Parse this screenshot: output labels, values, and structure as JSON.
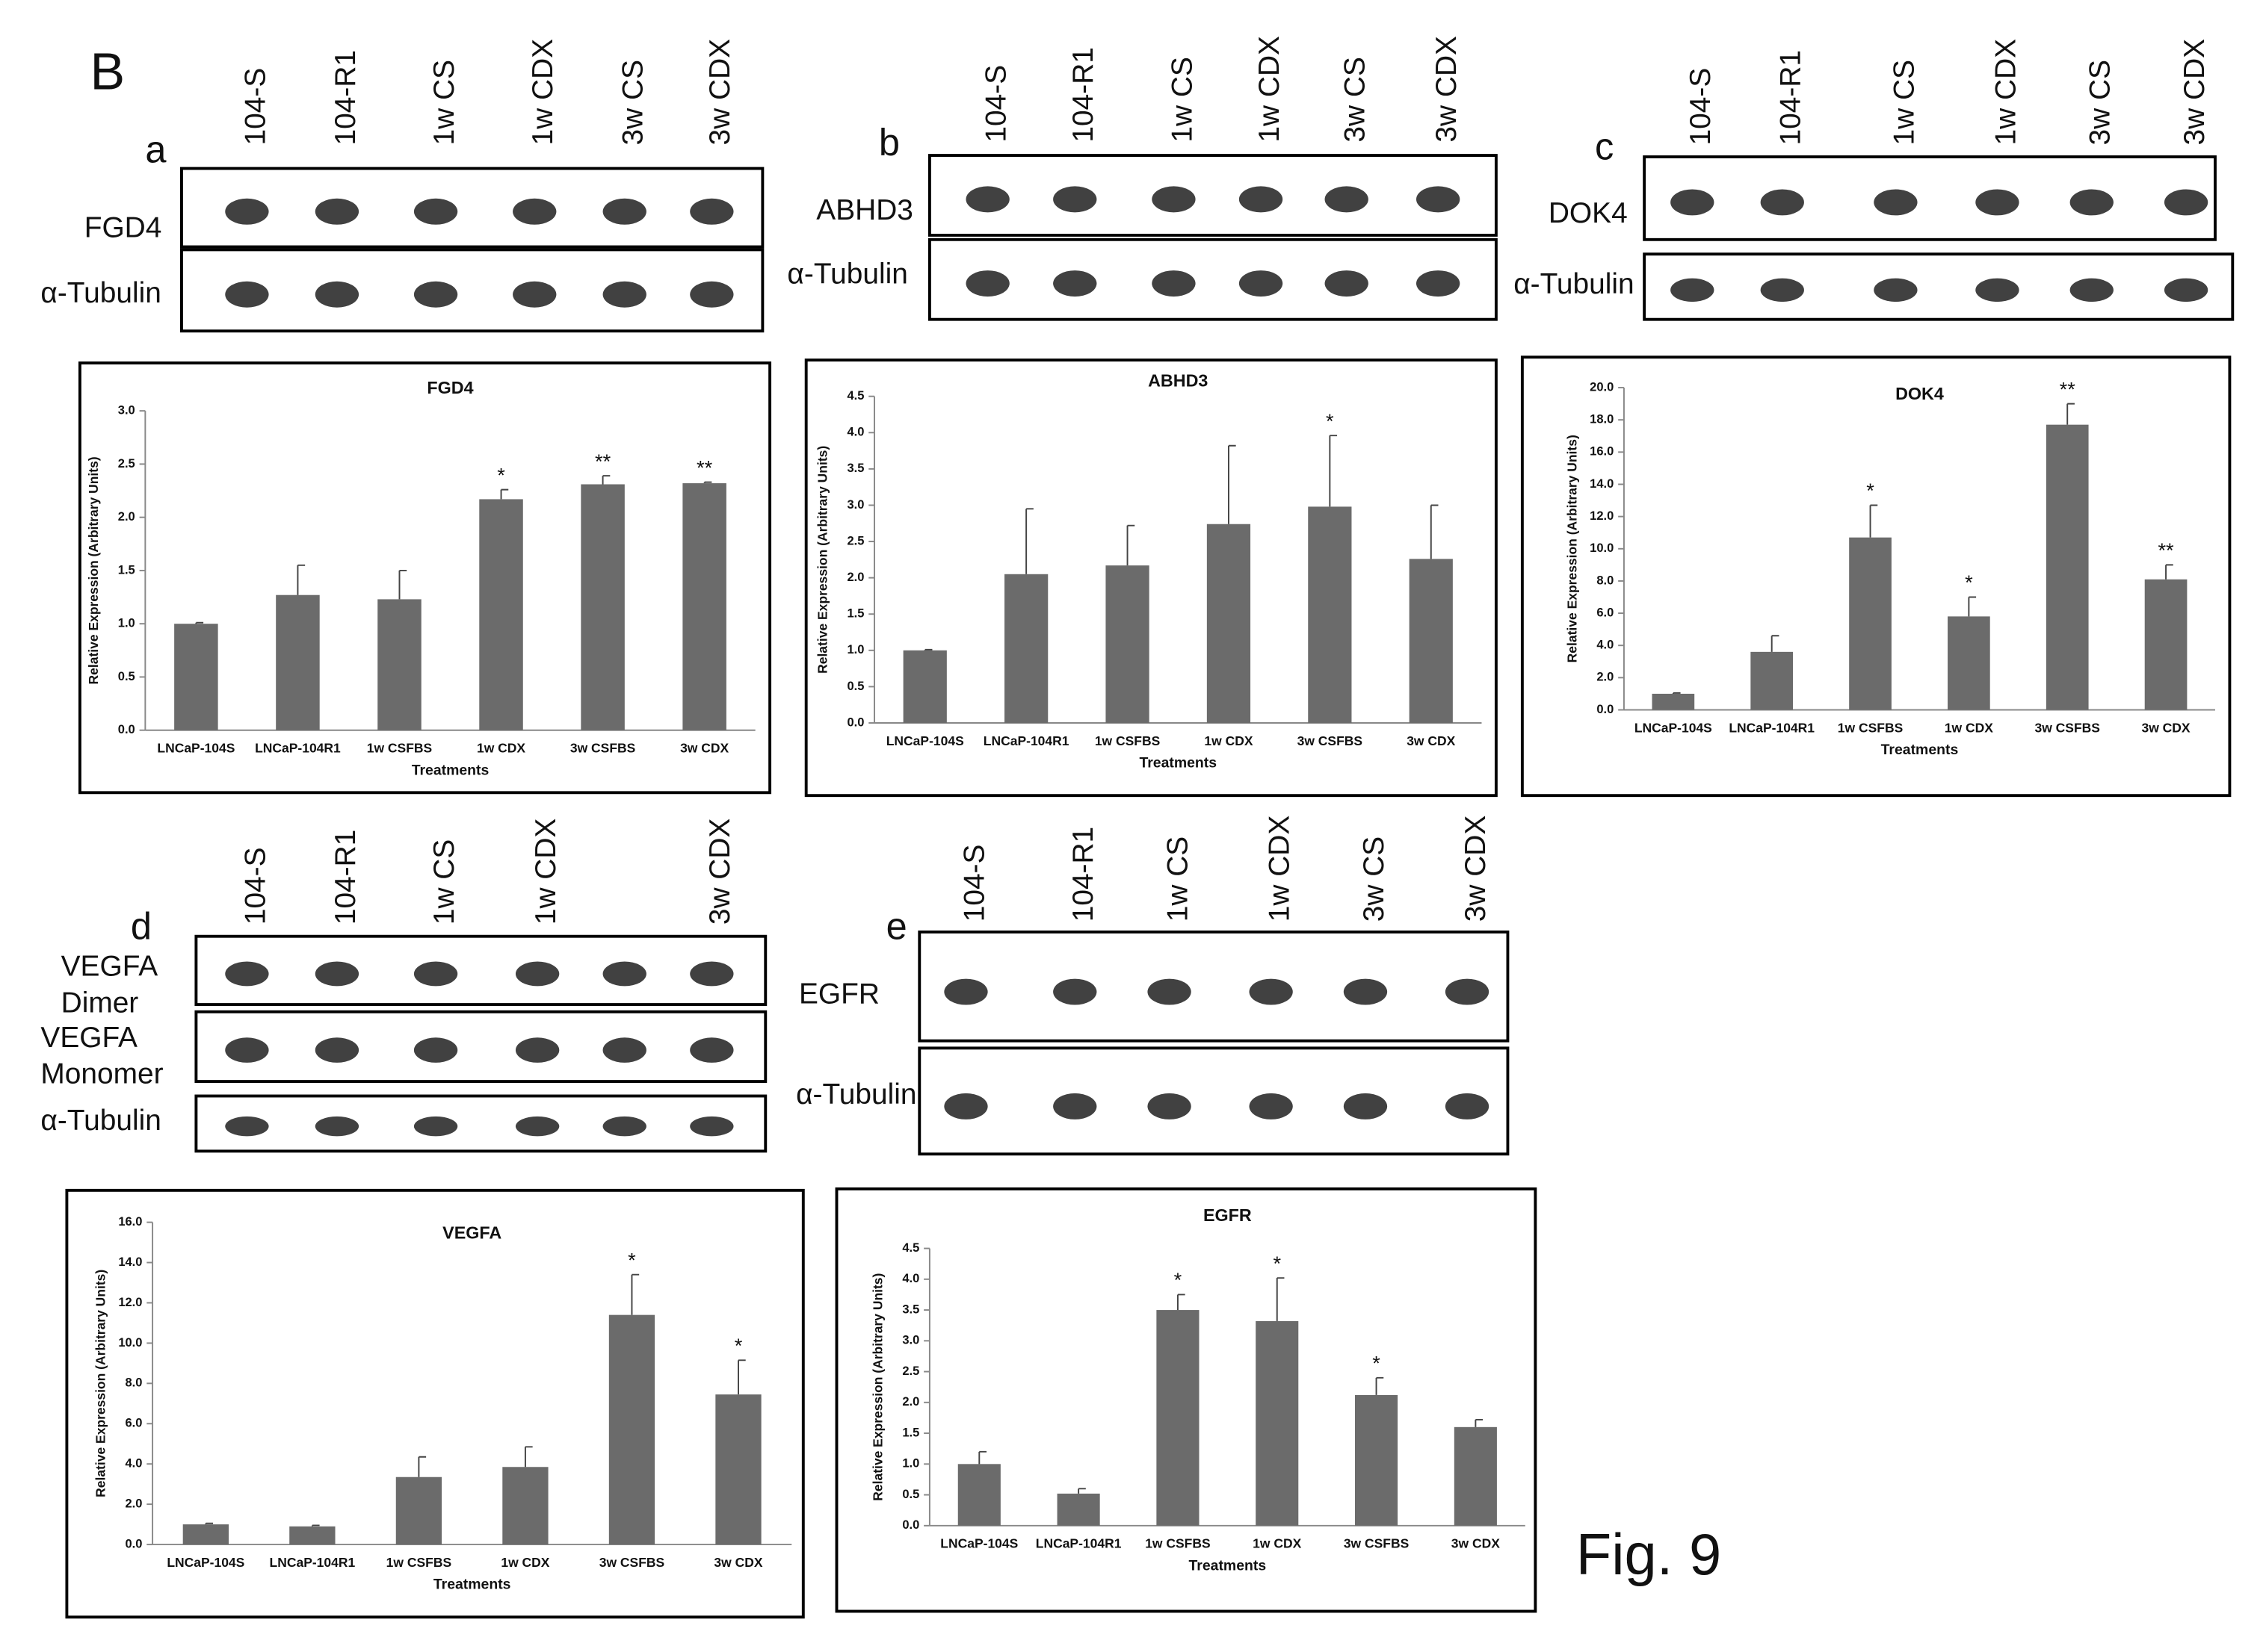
{
  "figure_label": "B",
  "caption": "Fig. 9",
  "blots": [
    {
      "panel": "a",
      "lanes": [
        "104-S",
        "104-R1",
        "1w CS",
        "1w CDX",
        "3w CS",
        "3w CDX"
      ],
      "rows": [
        [
          "FGD4"
        ],
        [
          "α-Tubulin"
        ]
      ]
    },
    {
      "panel": "b",
      "lanes": [
        "104-S",
        "104-R1",
        "1w CS",
        "1w CDX",
        "3w CS",
        "3w CDX"
      ],
      "rows": [
        [
          "ABHD3"
        ],
        [
          "α-Tubulin"
        ]
      ]
    },
    {
      "panel": "c",
      "lanes": [
        "104-S",
        "104-R1",
        "1w CS",
        "1w CDX",
        "3w CS",
        "3w CDX"
      ],
      "rows": [
        [
          "DOK4"
        ],
        [
          "α-Tubulin"
        ]
      ]
    },
    {
      "panel": "d",
      "lanes": [
        "104-S",
        "104-R1",
        "1w CS",
        "1w CDX",
        null,
        "3w CDX"
      ],
      "rows": [
        [
          "VEGFA",
          "Dimer"
        ],
        [
          "VEGFA",
          "Monomer"
        ],
        [
          "α-Tubulin"
        ]
      ]
    },
    {
      "panel": "e",
      "lanes": [
        "104-S",
        "104-R1",
        "1w CS",
        "1w CDX",
        "3w CS",
        "3w CDX"
      ],
      "rows": [
        [
          "EGFR"
        ],
        [
          "α-Tubulin"
        ]
      ]
    }
  ],
  "chart_data": [
    {
      "type": "bar",
      "title": "FGD4",
      "xlabel": "Treatments",
      "ylabel": "Relative Expression (Arbitrary Units)",
      "color": "#6b6b6b",
      "categories": [
        "LNCaP-104S",
        "LNCaP-104R1",
        "1w CSFBS",
        "1w CDX",
        "3w CSFBS",
        "3w CDX"
      ],
      "values": [
        1.0,
        1.27,
        1.23,
        2.17,
        2.31,
        2.32
      ],
      "errors": [
        0.01,
        0.28,
        0.27,
        0.09,
        0.08,
        0.01
      ],
      "annotations": [
        null,
        null,
        null,
        "*",
        "**",
        "**"
      ],
      "ylim": [
        0,
        3
      ],
      "yticks": [
        {
          "value": 0,
          "label": "0.0"
        },
        0.5,
        {
          "value": 1,
          "label": "1.0"
        },
        1.5,
        {
          "value": 2,
          "label": "2.0"
        },
        2.5,
        {
          "value": 3,
          "label": "3.0"
        }
      ]
    },
    {
      "type": "bar",
      "title": "ABHD3",
      "xlabel": "Treatments",
      "ylabel": "Relative Expression (Arbitrary Units)",
      "color": "#6b6b6b",
      "categories": [
        "LNCaP-104S",
        "LNCaP-104R1",
        "1w CSFBS",
        "1w CDX",
        "3w CSFBS",
        "3w CDX"
      ],
      "values": [
        1.0,
        2.05,
        2.17,
        2.74,
        2.98,
        2.26
      ],
      "errors": [
        0.01,
        0.9,
        0.55,
        1.08,
        0.98,
        0.74
      ],
      "annotations": [
        null,
        null,
        null,
        null,
        "*",
        null
      ],
      "ylim": [
        0,
        4.5
      ],
      "yticks": [
        {
          "value": 0,
          "label": "0.0"
        },
        0.5,
        {
          "value": 1,
          "label": "1.0"
        },
        1.5,
        {
          "value": 2,
          "label": "2.0"
        },
        2.5,
        {
          "value": 3,
          "label": "3.0"
        },
        3.5,
        {
          "value": 4,
          "label": "4.0"
        },
        4.5
      ]
    },
    {
      "type": "bar",
      "title": "DOK4",
      "xlabel": "Treatments",
      "ylabel": "Relative Expression (Arbitrary Units)",
      "color": "#6b6b6b",
      "categories": [
        "LNCaP-104S",
        "LNCaP-104R1",
        "1w CSFBS",
        "1w CDX",
        "3w CSFBS",
        "3w CDX"
      ],
      "values": [
        1.0,
        3.6,
        10.7,
        5.8,
        17.7,
        8.1
      ],
      "errors": [
        0.05,
        1.0,
        2.0,
        1.2,
        1.3,
        0.9
      ],
      "annotations": [
        null,
        null,
        "*",
        "*",
        "**",
        "**"
      ],
      "ylim": [
        0,
        20
      ],
      "yticks": [
        {
          "value": 0,
          "label": "0.0"
        },
        {
          "value": 2,
          "label": "2.0"
        },
        {
          "value": 4,
          "label": "4.0"
        },
        {
          "value": 6,
          "label": "6.0"
        },
        {
          "value": 8,
          "label": "8.0"
        },
        {
          "value": 10,
          "label": "10.0"
        },
        {
          "value": 12,
          "label": "12.0"
        },
        {
          "value": 14,
          "label": "14.0"
        },
        {
          "value": 16,
          "label": "16.0"
        },
        {
          "value": 18,
          "label": "18.0"
        },
        {
          "value": 20,
          "label": "20.0"
        }
      ]
    },
    {
      "type": "bar",
      "title": "VEGFA",
      "xlabel": "Treatments",
      "ylabel": "Relative Expression (Arbitrary Units)",
      "color": "#6b6b6b",
      "categories": [
        "LNCaP-104S",
        "LNCaP-104R1",
        "1w CSFBS",
        "1w CDX",
        "3w CSFBS",
        "3w CDX"
      ],
      "values": [
        1.0,
        0.9,
        3.35,
        3.85,
        11.4,
        7.45
      ],
      "errors": [
        0.05,
        0.05,
        1.0,
        1.0,
        2.0,
        1.7
      ],
      "annotations": [
        null,
        null,
        null,
        null,
        "*",
        "*"
      ],
      "ylim": [
        0,
        16
      ],
      "yticks": [
        {
          "value": 0,
          "label": "0.0"
        },
        {
          "value": 2,
          "label": "2.0"
        },
        {
          "value": 4,
          "label": "4.0"
        },
        {
          "value": 6,
          "label": "6.0"
        },
        {
          "value": 8,
          "label": "8.0"
        },
        {
          "value": 10,
          "label": "10.0"
        },
        {
          "value": 12,
          "label": "12.0"
        },
        {
          "value": 14,
          "label": "14.0"
        },
        {
          "value": 16,
          "label": "16.0"
        }
      ]
    },
    {
      "type": "bar",
      "title": "EGFR",
      "xlabel": "Treatments",
      "ylabel": "Relative Expression (Arbitrary Units)",
      "color": "#6b6b6b",
      "categories": [
        "LNCaP-104S",
        "LNCaP-104R1",
        "1w CSFBS",
        "1w CDX",
        "3w CSFBS",
        "3w CDX"
      ],
      "values": [
        1.0,
        0.52,
        3.5,
        3.32,
        2.12,
        1.6
      ],
      "errors": [
        0.2,
        0.08,
        0.25,
        0.7,
        0.28,
        0.12
      ],
      "annotations": [
        null,
        null,
        "*",
        "*",
        "*",
        null
      ],
      "ylim": [
        0,
        4.5
      ],
      "yticks": [
        {
          "value": 0,
          "label": "0.0"
        },
        0.5,
        {
          "value": 1,
          "label": "1.0"
        },
        1.5,
        {
          "value": 2,
          "label": "2.0"
        },
        2.5,
        {
          "value": 3,
          "label": "3.0"
        },
        3.5,
        {
          "value": 4,
          "label": "4.0"
        },
        4.5
      ]
    }
  ]
}
